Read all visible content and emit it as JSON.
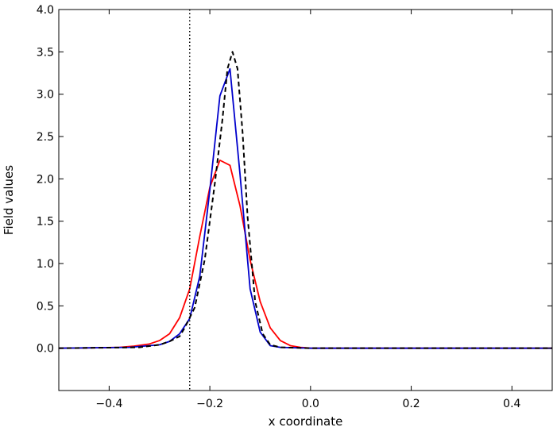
{
  "chart_data": {
    "type": "line",
    "title": "",
    "xlabel": "x coordinate",
    "ylabel": "Field values",
    "xlim": [
      -0.5,
      0.48
    ],
    "ylim": [
      -0.5,
      4.0
    ],
    "xticks": [
      -0.4,
      -0.2,
      0.0,
      0.2,
      0.4
    ],
    "xtick_labels": [
      "−0.4",
      "−0.2",
      "0.0",
      "0.2",
      "0.4"
    ],
    "yticks": [
      0.0,
      0.5,
      1.0,
      1.5,
      2.0,
      2.5,
      3.0,
      3.5,
      4.0
    ],
    "ytick_labels": [
      "0.0",
      "0.5",
      "1.0",
      "1.5",
      "2.0",
      "2.5",
      "3.0",
      "3.5",
      "4.0"
    ],
    "grid": false,
    "vline": {
      "x": -0.24,
      "style": "dotted",
      "color": "#000000"
    },
    "series": [
      {
        "color": "#ff0000",
        "style": "solid",
        "x": [
          -0.5,
          -0.42,
          -0.38,
          -0.35,
          -0.32,
          -0.3,
          -0.28,
          -0.26,
          -0.24,
          -0.22,
          -0.2,
          -0.18,
          -0.16,
          -0.14,
          -0.12,
          -0.1,
          -0.08,
          -0.06,
          -0.04,
          -0.02,
          0.0,
          0.05,
          0.48
        ],
        "y": [
          0.0,
          0.005,
          0.01,
          0.025,
          0.05,
          0.09,
          0.17,
          0.36,
          0.7,
          1.32,
          1.9,
          2.22,
          2.16,
          1.68,
          1.04,
          0.55,
          0.24,
          0.09,
          0.03,
          0.01,
          0.0,
          0.0,
          0.0
        ]
      },
      {
        "color": "#0000cc",
        "style": "solid",
        "x": [
          -0.5,
          -0.36,
          -0.3,
          -0.28,
          -0.26,
          -0.24,
          -0.22,
          -0.2,
          -0.18,
          -0.16,
          -0.14,
          -0.12,
          -0.1,
          -0.08,
          -0.06,
          0.0,
          0.48
        ],
        "y": [
          0.0,
          0.01,
          0.04,
          0.08,
          0.17,
          0.35,
          0.85,
          1.87,
          2.98,
          3.3,
          2.05,
          0.7,
          0.19,
          0.03,
          0.01,
          0.0,
          0.0
        ]
      },
      {
        "color": "#000000",
        "style": "dashed",
        "x": [
          -0.5,
          -0.34,
          -0.3,
          -0.28,
          -0.26,
          -0.25,
          -0.23,
          -0.21,
          -0.19,
          -0.175,
          -0.165,
          -0.155,
          -0.145,
          -0.135,
          -0.125,
          -0.11,
          -0.095,
          -0.08,
          -0.06,
          0.0,
          0.48
        ],
        "y": [
          0.0,
          0.01,
          0.04,
          0.08,
          0.14,
          0.24,
          0.48,
          1.05,
          1.95,
          2.7,
          3.3,
          3.5,
          3.3,
          2.55,
          1.55,
          0.55,
          0.17,
          0.04,
          0.01,
          0.0,
          0.0
        ]
      }
    ]
  }
}
